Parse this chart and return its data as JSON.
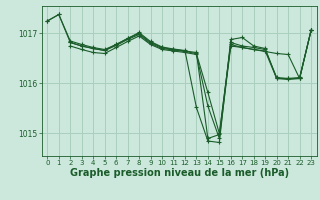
{
  "background_color": "#cce8dc",
  "grid_color": "#aacfbe",
  "line_color": "#1a5c2a",
  "xlabel": "Graphe pression niveau de la mer (hPa)",
  "xlabel_fontsize": 7,
  "yticks": [
    1015,
    1016,
    1017
  ],
  "ylim": [
    1014.55,
    1017.55
  ],
  "xlim": [
    -0.5,
    23.5
  ],
  "xticks": [
    0,
    1,
    2,
    3,
    4,
    5,
    6,
    7,
    8,
    9,
    10,
    11,
    12,
    13,
    14,
    15,
    16,
    17,
    18,
    19,
    20,
    21,
    22,
    23
  ],
  "series": [
    {
      "x": [
        0,
        1,
        2,
        3,
        4,
        5,
        6,
        7,
        8,
        9,
        10,
        11,
        12,
        13,
        14,
        15,
        16,
        17,
        18,
        19,
        20,
        21,
        22,
        23
      ],
      "y": [
        1017.25,
        1017.38,
        1016.85,
        1016.78,
        1016.72,
        1016.68,
        1016.78,
        1016.9,
        1017.0,
        1016.82,
        1016.72,
        1016.68,
        1016.65,
        1016.62,
        1014.9,
        1014.98,
        1016.82,
        1016.75,
        1016.72,
        1016.68,
        1016.12,
        1016.1,
        1016.12,
        1017.06
      ]
    },
    {
      "x": [
        2,
        3,
        4,
        5,
        6,
        7,
        8,
        9,
        10,
        11,
        12,
        13,
        14,
        15,
        16,
        17,
        18,
        19,
        20,
        21,
        22,
        23
      ],
      "y": [
        1016.75,
        1016.68,
        1016.62,
        1016.6,
        1016.72,
        1016.84,
        1016.95,
        1016.78,
        1016.68,
        1016.65,
        1016.62,
        1016.58,
        1015.55,
        1014.9,
        1016.75,
        1016.72,
        1016.68,
        1016.65,
        1016.1,
        1016.1,
        1016.1,
        1017.06
      ]
    },
    {
      "x": [
        2,
        3,
        4,
        5,
        6,
        7,
        8,
        9,
        10,
        11,
        12,
        13,
        14,
        15,
        16,
        17,
        18,
        19,
        20,
        21,
        22,
        23
      ],
      "y": [
        1016.82,
        1016.75,
        1016.7,
        1016.66,
        1016.76,
        1016.88,
        1016.98,
        1016.8,
        1016.7,
        1016.67,
        1016.64,
        1016.6,
        1015.82,
        1015.0,
        1016.78,
        1016.72,
        1016.68,
        1016.64,
        1016.6,
        1016.58,
        1016.1,
        1017.06
      ]
    },
    {
      "x": [
        0,
        1,
        2,
        3,
        4,
        5,
        6,
        7,
        8,
        9,
        10,
        11,
        12,
        13,
        14,
        15,
        16,
        17,
        18,
        19,
        20,
        21,
        22,
        23
      ],
      "y": [
        1017.25,
        1017.38,
        1016.82,
        1016.75,
        1016.7,
        1016.66,
        1016.78,
        1016.9,
        1017.02,
        1016.84,
        1016.73,
        1016.69,
        1016.66,
        1015.52,
        1014.85,
        1014.82,
        1016.88,
        1016.92,
        1016.75,
        1016.7,
        1016.1,
        1016.08,
        1016.1,
        1017.07
      ]
    }
  ]
}
